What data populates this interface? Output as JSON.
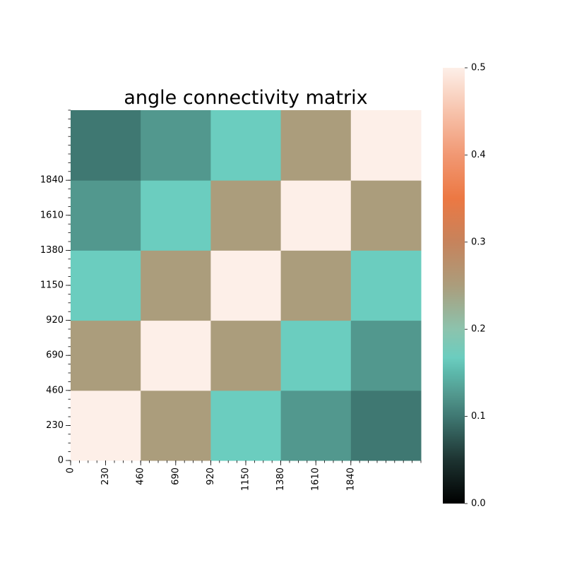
{
  "chart_data": {
    "type": "heatmap",
    "title": "angle connectivity matrix",
    "xlabel": "",
    "ylabel": "",
    "rows": 5,
    "cols": 5,
    "extent": [
      0,
      2300
    ],
    "x_tick_labels": [
      "0",
      "230",
      "460",
      "690",
      "920",
      "1150",
      "1380",
      "1610",
      "1840"
    ],
    "y_tick_labels": [
      "0",
      "230",
      "460",
      "690",
      "920",
      "1150",
      "1380",
      "1610",
      "1840"
    ],
    "values": [
      [
        0.5,
        0.25,
        0.167,
        0.125,
        0.1
      ],
      [
        0.25,
        0.5,
        0.25,
        0.167,
        0.125
      ],
      [
        0.167,
        0.25,
        0.5,
        0.25,
        0.167
      ],
      [
        0.125,
        0.167,
        0.25,
        0.5,
        0.25
      ],
      [
        0.1,
        0.125,
        0.167,
        0.25,
        0.5
      ]
    ],
    "row_order": "bottom-to-top",
    "colorbar": {
      "vmin": 0.0,
      "vmax": 0.5,
      "tick_labels": [
        "0.0",
        "0.1",
        "0.2",
        "0.3",
        "0.4",
        "0.5"
      ],
      "colors": [
        {
          "v": 0.0,
          "c": "#000000"
        },
        {
          "v": 0.05,
          "c": "#1d3331"
        },
        {
          "v": 0.1,
          "c": "#3f7872"
        },
        {
          "v": 0.125,
          "c": "#52988e"
        },
        {
          "v": 0.15,
          "c": "#5cb8ab"
        },
        {
          "v": 0.167,
          "c": "#6bcdbf"
        },
        {
          "v": 0.2,
          "c": "#8cc3ad"
        },
        {
          "v": 0.25,
          "c": "#ab9d7c"
        },
        {
          "v": 0.3,
          "c": "#c6835c"
        },
        {
          "v": 0.35,
          "c": "#ec7843"
        },
        {
          "v": 0.4,
          "c": "#f19873"
        },
        {
          "v": 0.45,
          "c": "#f7c3ac"
        },
        {
          "v": 0.5,
          "c": "#fdefe8"
        }
      ]
    }
  }
}
